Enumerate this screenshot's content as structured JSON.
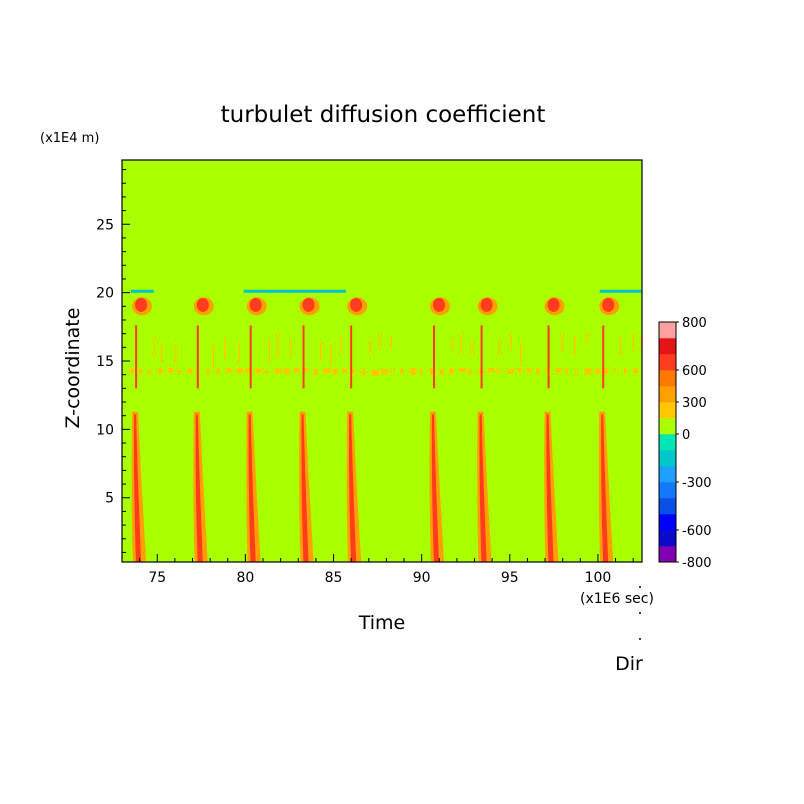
{
  "chart_data": {
    "type": "heatmap",
    "title": "turbulet diffusion coefficient",
    "xlabel": "Time",
    "ylabel": "Z-coordinate",
    "x_unit": "(x1E6 sec)",
    "y_unit": "(x1E4 m)",
    "xlim": [
      73,
      102.5
    ],
    "ylim": [
      0.3,
      29.7
    ],
    "x_ticks": [
      75,
      80,
      85,
      90,
      95,
      100
    ],
    "y_ticks": [
      5,
      10,
      15,
      20,
      25
    ],
    "background_value": 0,
    "events_x": [
      73.8,
      77.3,
      80.3,
      83.3,
      86.0,
      90.7,
      93.4,
      97.2,
      100.3
    ],
    "negative_band": {
      "y": 20.1,
      "segments": [
        [
          73.5,
          74.8
        ],
        [
          79.9,
          85.7
        ],
        [
          100.1,
          102.5
        ]
      ],
      "value": -150
    },
    "upper_blobs_y": 19.0,
    "mid_band_y": 14.3,
    "colorbar": {
      "levels": [
        -800,
        -700,
        -600,
        -500,
        -400,
        -300,
        -200,
        -100,
        0,
        150,
        300,
        450,
        600,
        700,
        800
      ],
      "colors": [
        "#8200b4",
        "#0a0ac8",
        "#0000ff",
        "#0a50e6",
        "#1478ff",
        "#1ea0ff",
        "#00c8c8",
        "#00e6b4",
        "#aaff00",
        "#ffc800",
        "#ffa000",
        "#ff7800",
        "#ff3c1e",
        "#e61414",
        "#ffa0a0"
      ],
      "tick_labels": [
        "800",
        "600",
        "300",
        "0",
        "-300",
        "-600",
        "-800"
      ],
      "tick_values": [
        800,
        600,
        300,
        0,
        -300,
        -600,
        -800
      ]
    }
  },
  "footer": {
    "label": "Dir"
  }
}
